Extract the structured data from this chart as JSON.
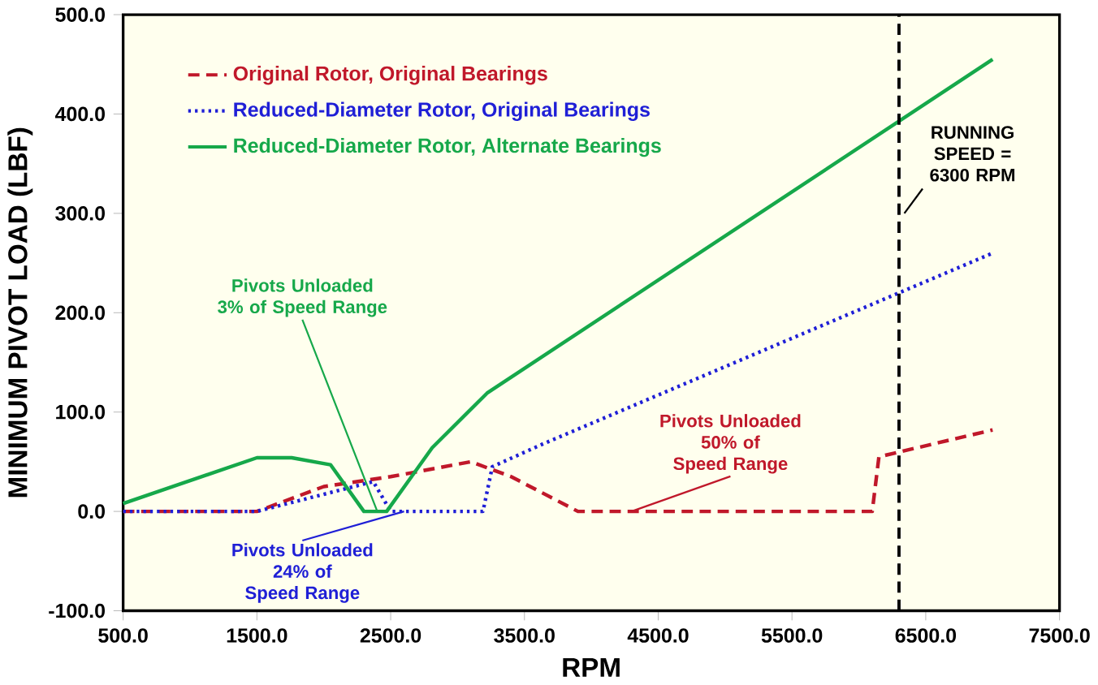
{
  "chart_data": {
    "type": "line",
    "xlabel": "RPM",
    "ylabel": "MINIMUM PIVOT LOAD (LBF)",
    "xlim": [
      500,
      7500
    ],
    "ylim": [
      -100,
      500
    ],
    "xticks": [
      {
        "value": 500,
        "label": "500.0"
      },
      {
        "value": 1500,
        "label": "1500.0"
      },
      {
        "value": 2500,
        "label": "2500.0"
      },
      {
        "value": 3500,
        "label": "3500.0"
      },
      {
        "value": 4500,
        "label": "4500.0"
      },
      {
        "value": 5500,
        "label": "5500.0"
      },
      {
        "value": 6500,
        "label": "6500.0"
      },
      {
        "value": 7500,
        "label": "7500.0"
      }
    ],
    "yticks": [
      {
        "value": -100,
        "label": "-100.0"
      },
      {
        "value": 0,
        "label": "0.0"
      },
      {
        "value": 100,
        "label": "100.0"
      },
      {
        "value": 200,
        "label": "200.0"
      },
      {
        "value": 300,
        "label": "300.0"
      },
      {
        "value": 400,
        "label": "400.0"
      },
      {
        "value": 500,
        "label": "500.0"
      }
    ],
    "legend": "top left",
    "grid": false,
    "marker": "none",
    "series": [
      {
        "name": "Original Rotor, Original Bearings",
        "color": "#c0182a",
        "line_style": "dashed",
        "x": [
          500,
          1500,
          2000,
          2500,
          3100,
          3400,
          3900,
          6100,
          6150,
          7000
        ],
        "values": [
          0,
          0,
          25,
          35,
          50,
          35,
          0,
          0,
          55,
          82
        ]
      },
      {
        "name": "Reduced-Diameter Rotor, Original Bearings",
        "color": "#1f1fd6",
        "line_style": "dotted",
        "x": [
          500,
          1500,
          2370,
          2500,
          3190,
          3260,
          3640,
          7000
        ],
        "values": [
          0,
          0,
          30,
          0,
          0,
          45,
          68,
          260
        ]
      },
      {
        "name": "Reduced-Diameter Rotor, Alternate Bearings",
        "color": "#16a84a",
        "line_style": "solid",
        "x": [
          500,
          1500,
          1760,
          2050,
          2300,
          2470,
          2810,
          3220,
          7000
        ],
        "values": [
          8,
          54,
          54,
          47,
          0,
          0,
          64,
          119,
          455
        ]
      }
    ],
    "ref_lines": [
      {
        "axis": "x",
        "value": 6300,
        "label": "RUNNING SPEED = 6300 RPM",
        "color": "#000000",
        "line_style": "dashed"
      }
    ],
    "annotations": [
      {
        "text": "Pivots Unloaded 3% of Speed Range",
        "x": 2400,
        "y": 0
      },
      {
        "text": "Pivots Unloaded 24% of Speed Range",
        "x": 2600,
        "y": 0
      },
      {
        "text": "Pivots Unloaded 50% of Speed Range",
        "x": 4300,
        "y": 0
      }
    ]
  }
}
